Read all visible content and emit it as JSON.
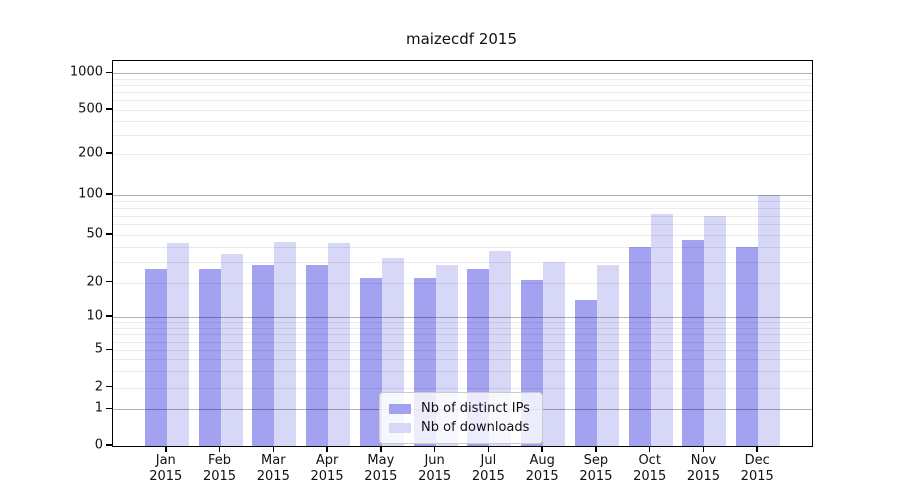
{
  "chart_data": {
    "type": "bar",
    "title": "maizecdf 2015",
    "categories": [
      "Jan",
      "Feb",
      "Mar",
      "Apr",
      "May",
      "Jun",
      "Jul",
      "Aug",
      "Sep",
      "Oct",
      "Nov",
      "Dec"
    ],
    "category_year": "2015",
    "series": [
      {
        "name": "Nb of distinct IPs",
        "color": "#a2a2f0",
        "values": [
          26,
          26,
          28,
          28,
          22,
          22,
          26,
          21,
          14,
          40,
          45,
          40
        ]
      },
      {
        "name": "Nb of downloads",
        "color": "#d7d7f8",
        "values": [
          43,
          35,
          44,
          43,
          32,
          28,
          37,
          30,
          28,
          72,
          70,
          100
        ]
      }
    ],
    "yscale": "symlog",
    "ylim": [
      0,
      1000
    ],
    "yticks": [
      0,
      1,
      2,
      5,
      10,
      20,
      50,
      100,
      200,
      500,
      1000
    ],
    "grid": true,
    "legend_position": "lower center"
  },
  "colors": {
    "bar_dark": "#a2a2f0",
    "bar_light": "#d7d7f8",
    "grid_major": "#b3b3b3",
    "grid_minor": "#ebebeb",
    "axis": "#000000",
    "text": "#111111"
  }
}
